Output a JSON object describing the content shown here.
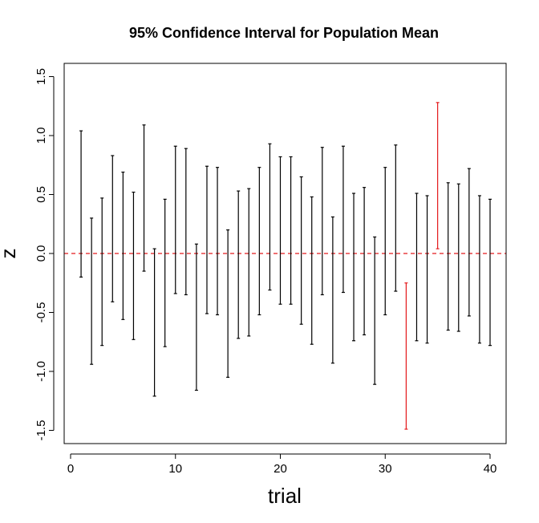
{
  "chart_data": {
    "type": "interval",
    "title": "95% Confidence Interval for Population Mean",
    "xlabel": "trial",
    "ylabel": "z",
    "xlim": [
      0,
      41.5
    ],
    "ylim": [
      -1.6,
      1.6
    ],
    "xticks": [
      0,
      10,
      20,
      30,
      40
    ],
    "yticks": [
      -1.5,
      -1.0,
      -0.5,
      0.0,
      0.5,
      1.0,
      1.5
    ],
    "xtick_labels": [
      "0",
      "10",
      "20",
      "30",
      "40"
    ],
    "ytick_labels": [
      "-1.5",
      "-1.0",
      "-0.5",
      "0.0",
      "0.5",
      "1.0",
      "1.5"
    ],
    "reference_line": {
      "y": 0,
      "color": "#e41a1c",
      "style": "dashed"
    },
    "colors": {
      "contains_zero": "#000000",
      "misses_zero": "#e41a1c"
    },
    "intervals": [
      {
        "trial": 1,
        "lower": -0.2,
        "upper": 1.04
      },
      {
        "trial": 2,
        "lower": -0.94,
        "upper": 0.3
      },
      {
        "trial": 3,
        "lower": -0.78,
        "upper": 0.47
      },
      {
        "trial": 4,
        "lower": -0.41,
        "upper": 0.83
      },
      {
        "trial": 5,
        "lower": -0.56,
        "upper": 0.69
      },
      {
        "trial": 6,
        "lower": -0.73,
        "upper": 0.52
      },
      {
        "trial": 7,
        "lower": -0.15,
        "upper": 1.09
      },
      {
        "trial": 8,
        "lower": -1.21,
        "upper": 0.04
      },
      {
        "trial": 9,
        "lower": -0.79,
        "upper": 0.46
      },
      {
        "trial": 10,
        "lower": -0.34,
        "upper": 0.91
      },
      {
        "trial": 11,
        "lower": -0.35,
        "upper": 0.89
      },
      {
        "trial": 12,
        "lower": -1.16,
        "upper": 0.08
      },
      {
        "trial": 13,
        "lower": -0.51,
        "upper": 0.74
      },
      {
        "trial": 14,
        "lower": -0.52,
        "upper": 0.73
      },
      {
        "trial": 15,
        "lower": -1.05,
        "upper": 0.2
      },
      {
        "trial": 16,
        "lower": -0.72,
        "upper": 0.53
      },
      {
        "trial": 17,
        "lower": -0.7,
        "upper": 0.55
      },
      {
        "trial": 18,
        "lower": -0.52,
        "upper": 0.73
      },
      {
        "trial": 19,
        "lower": -0.31,
        "upper": 0.93
      },
      {
        "trial": 20,
        "lower": -0.43,
        "upper": 0.82
      },
      {
        "trial": 21,
        "lower": -0.43,
        "upper": 0.82
      },
      {
        "trial": 22,
        "lower": -0.6,
        "upper": 0.65
      },
      {
        "trial": 23,
        "lower": -0.77,
        "upper": 0.48
      },
      {
        "trial": 24,
        "lower": -0.35,
        "upper": 0.9
      },
      {
        "trial": 25,
        "lower": -0.93,
        "upper": 0.31
      },
      {
        "trial": 26,
        "lower": -0.33,
        "upper": 0.91
      },
      {
        "trial": 27,
        "lower": -0.74,
        "upper": 0.51
      },
      {
        "trial": 28,
        "lower": -0.69,
        "upper": 0.56
      },
      {
        "trial": 29,
        "lower": -1.11,
        "upper": 0.14
      },
      {
        "trial": 30,
        "lower": -0.52,
        "upper": 0.73
      },
      {
        "trial": 31,
        "lower": -0.32,
        "upper": 0.92
      },
      {
        "trial": 32,
        "lower": -1.49,
        "upper": -0.25
      },
      {
        "trial": 33,
        "lower": -0.74,
        "upper": 0.51
      },
      {
        "trial": 34,
        "lower": -0.76,
        "upper": 0.49
      },
      {
        "trial": 35,
        "lower": 0.04,
        "upper": 1.28
      },
      {
        "trial": 36,
        "lower": -0.65,
        "upper": 0.6
      },
      {
        "trial": 37,
        "lower": -0.66,
        "upper": 0.59
      },
      {
        "trial": 38,
        "lower": -0.53,
        "upper": 0.72
      },
      {
        "trial": 39,
        "lower": -0.76,
        "upper": 0.49
      },
      {
        "trial": 40,
        "lower": -0.78,
        "upper": 0.46
      }
    ]
  }
}
